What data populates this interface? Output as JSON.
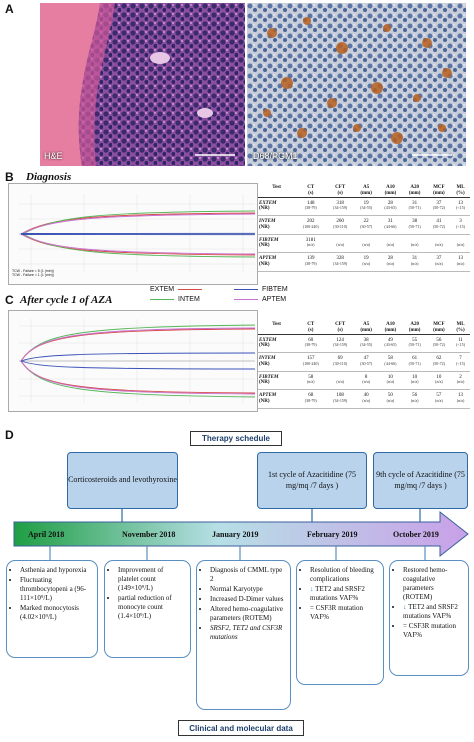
{
  "panels": {
    "a": {
      "label": "A",
      "left_caption": "H&E",
      "right_caption": "D68/PGM1"
    },
    "b": {
      "label": "B",
      "title": "Diagnosis",
      "footer_lines": [
        "TCW - Failure = 5 (1 (min))",
        "TCW - Failure = 1 (1 (min))"
      ]
    },
    "c": {
      "label": "C",
      "title": "After cycle 1 of AZA"
    },
    "d": {
      "label": "D"
    }
  },
  "rotem_table": {
    "headers": [
      "Test",
      "CT\n(s)",
      "CFT\n(s)",
      "A5\n(mm)",
      "A10\n(mm)",
      "A20\n(mm)",
      "MCF\n(mm)",
      "ML\n(%)"
    ],
    "diagnosis_rows": [
      {
        "name": "EXTEM",
        "nr": "(NR)",
        "values": [
          [
            "148",
            "(38-79)"
          ],
          [
            "318",
            "(34-159)"
          ],
          [
            "19",
            "(34-55)"
          ],
          [
            "28",
            "(43-65)"
          ],
          [
            "31",
            "(50-71)"
          ],
          [
            "37",
            "(50-72)"
          ],
          [
            "13",
            "(<15)"
          ]
        ]
      },
      {
        "name": "INTEM",
        "nr": "(NR)",
        "values": [
          [
            "202",
            "(100-240)"
          ],
          [
            "260",
            "(30-110)"
          ],
          [
            "22",
            "(30-57)"
          ],
          [
            "31",
            "(44-66)"
          ],
          [
            "38",
            "(50-71)"
          ],
          [
            "41",
            "(50-72)"
          ],
          [
            "3",
            "(<15)"
          ]
        ]
      },
      {
        "name": "FIBTEM",
        "nr": "(NR)",
        "values": [
          [
            "3181",
            "(n/a)"
          ],
          [
            "",
            "(n/a)"
          ],
          [
            "",
            "(n/a)"
          ],
          [
            "",
            "(n/a)"
          ],
          [
            "",
            "(n/a)"
          ],
          [
            "",
            "(n/a)"
          ],
          [
            "",
            "(n/a)"
          ]
        ]
      },
      {
        "name": "APTEM",
        "nr": "(NR)",
        "values": [
          [
            "139",
            "(38-79)"
          ],
          [
            "328",
            "(34-159)"
          ],
          [
            "19",
            "(n/a)"
          ],
          [
            "28",
            "(n/a)"
          ],
          [
            "31",
            "(n/a)"
          ],
          [
            "37",
            "(n/a)"
          ],
          [
            "13",
            "(n/a)"
          ]
        ]
      }
    ],
    "after_rows": [
      {
        "name": "EXTEM",
        "nr": "(NR)",
        "values": [
          [
            "60",
            "(38-79)"
          ],
          [
            "124",
            "(34-159)"
          ],
          [
            "38",
            "(34-55)"
          ],
          [
            "49",
            "(43-65)"
          ],
          [
            "55",
            "(50-71)"
          ],
          [
            "56",
            "(50-72)"
          ],
          [
            "11",
            "(<15)"
          ]
        ]
      },
      {
        "name": "INTEM",
        "nr": "(NR)",
        "values": [
          [
            "157",
            "(100-240)"
          ],
          [
            "69",
            "(30-110)"
          ],
          [
            "47",
            "(30-57)"
          ],
          [
            "58",
            "(44-66)"
          ],
          [
            "61",
            "(50-71)"
          ],
          [
            "62",
            "(50-72)"
          ],
          [
            "7",
            "(<15)"
          ]
        ]
      },
      {
        "name": "FIBTEM",
        "nr": "(NR)",
        "values": [
          [
            "58",
            "(n/a)"
          ],
          [
            "",
            "(n/a)"
          ],
          [
            "8",
            "(n/a)"
          ],
          [
            "10",
            "(n/a)"
          ],
          [
            "10",
            "(n/a)"
          ],
          [
            "10",
            "(n/a)"
          ],
          [
            "2",
            "(n/a)"
          ]
        ]
      },
      {
        "name": "APTEM",
        "nr": "(NR)",
        "values": [
          [
            "68",
            "(38-79)"
          ],
          [
            "108",
            "(34-159)"
          ],
          [
            "40",
            "(n/a)"
          ],
          [
            "50",
            "(n/a)"
          ],
          [
            "56",
            "(n/a)"
          ],
          [
            "57",
            "(n/a)"
          ],
          [
            "13",
            "(n/a)"
          ]
        ]
      }
    ]
  },
  "legend": {
    "items": [
      {
        "label": "EXTEM",
        "color": "#d94b4b"
      },
      {
        "label": "FIBTEM",
        "color": "#3b53b8"
      },
      {
        "label": "INTEM",
        "color": "#58b65a"
      },
      {
        "label": "APTEM",
        "color": "#c86fd0"
      }
    ]
  },
  "timeline": {
    "therapy_caption": "Therapy schedule",
    "clinical_caption": "Clinical and molecular data",
    "therapy_boxes": [
      {
        "text": "Corticosteroids and levothyroxine"
      },
      {
        "text": "1st cycle of Azacitidine (75 mg/mq /7 days )"
      },
      {
        "text": "9th cycle of Azacitidine (75 mg/mq /7 days )"
      }
    ],
    "dates": [
      "April 2018",
      "November 2018",
      "January 2019",
      "February 2019",
      "October 2019"
    ],
    "cards": [
      {
        "items": [
          "Asthenia and hyporexia",
          "Fluctuating thrombocytopeni a (96-111×10⁹/L)",
          "Marked monocytosis (4.02×10⁹/L)"
        ]
      },
      {
        "items": [
          "Improvement of platelet count (149×10⁹/L)",
          "partial reduction of monocyte count (1.4×10⁹/L)"
        ]
      },
      {
        "items": [
          "Diagnosis of CMML type 2",
          "Normal Karyotype",
          "Increased D-Dimer values",
          "Altered hemo-coagulative parameters (ROTEM)",
          "SRSF2, TET2 and CSF3R mutations"
        ]
      },
      {
        "items": [
          "Resolution of bleeding complications",
          "TET2 and SRSF2 mutations VAF%",
          "= CSF3R mutation VAF%"
        ]
      },
      {
        "items": [
          "Restored hemo-coagulative parameters (ROTEM)",
          "TET2 and SRSF2 mutations VAF%",
          "= CSF3R mutation VAF%"
        ]
      }
    ]
  },
  "colors": {
    "timeline_start": "#1f9e44",
    "timeline_end": "#c9a0e8",
    "box_fill": "#b9d3ec",
    "box_border": "#2f6aa5"
  }
}
